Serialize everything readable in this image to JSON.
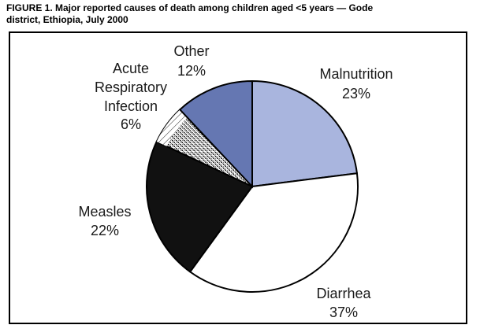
{
  "figure": {
    "title_line1": "FIGURE 1. Major reported causes of death among children aged <5 years — Gode",
    "title_line2": "district, Ethiopia, July 2000"
  },
  "chart_data": {
    "type": "pie",
    "title": "Major reported causes of death among children aged <5 years — Gode district, Ethiopia, July 2000",
    "unit": "%",
    "slices": [
      {
        "label": "Malnutrition",
        "value": 23,
        "value_label": "23%",
        "color": "#a9b5de",
        "pattern": "solid"
      },
      {
        "label": "Diarrhea",
        "value": 37,
        "value_label": "37%",
        "color": "#ffffff",
        "pattern": "solid"
      },
      {
        "label": "Measles",
        "value": 22,
        "value_label": "22%",
        "color": "#111111",
        "pattern": "solid"
      },
      {
        "label": "Acute Respiratory Infection",
        "label_lines": [
          "Acute",
          "Respiratory",
          "Infection"
        ],
        "value": 6,
        "value_label": "6%",
        "color": "#ffffff",
        "pattern": "hatched"
      },
      {
        "label": "Other",
        "value": 12,
        "value_label": "12%",
        "color": "#6577b2",
        "pattern": "solid"
      }
    ]
  }
}
